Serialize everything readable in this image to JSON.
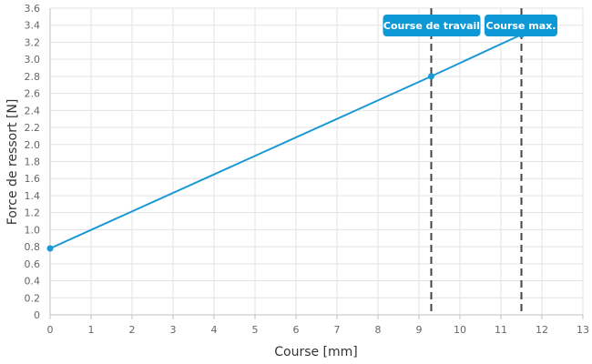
{
  "chart_data": {
    "type": "line",
    "xlabel": "Course [mm]",
    "ylabel": "Force de ressort [N]",
    "xlim": [
      0,
      13
    ],
    "ylim": [
      0,
      3.6
    ],
    "x_ticks": [
      0,
      1,
      2,
      3,
      4,
      5,
      6,
      7,
      8,
      9,
      10,
      11,
      12,
      13
    ],
    "y_ticks": [
      "0",
      "0.2",
      "0.4",
      "0.6",
      "0.8",
      "1.0",
      "1.2",
      "1.4",
      "1.6",
      "1.8",
      "2.0",
      "2.2",
      "2.4",
      "2.6",
      "2.8",
      "3.0",
      "3.2",
      "3.4",
      "3.6"
    ],
    "grid": true,
    "series": [
      {
        "x": [
          0,
          9.3,
          11.5
        ],
        "y": [
          0.78,
          2.8,
          3.29
        ],
        "color": "#1a98d5"
      }
    ],
    "reference_lines": [
      {
        "x": 9.3,
        "label": "Course de travail"
      },
      {
        "x": 11.5,
        "label": "Course max."
      }
    ]
  },
  "colors": {
    "line": "#1a98d5",
    "label_bg": "#0e99d6",
    "reference_line": "#444444",
    "grid": "#e3e3e3"
  }
}
